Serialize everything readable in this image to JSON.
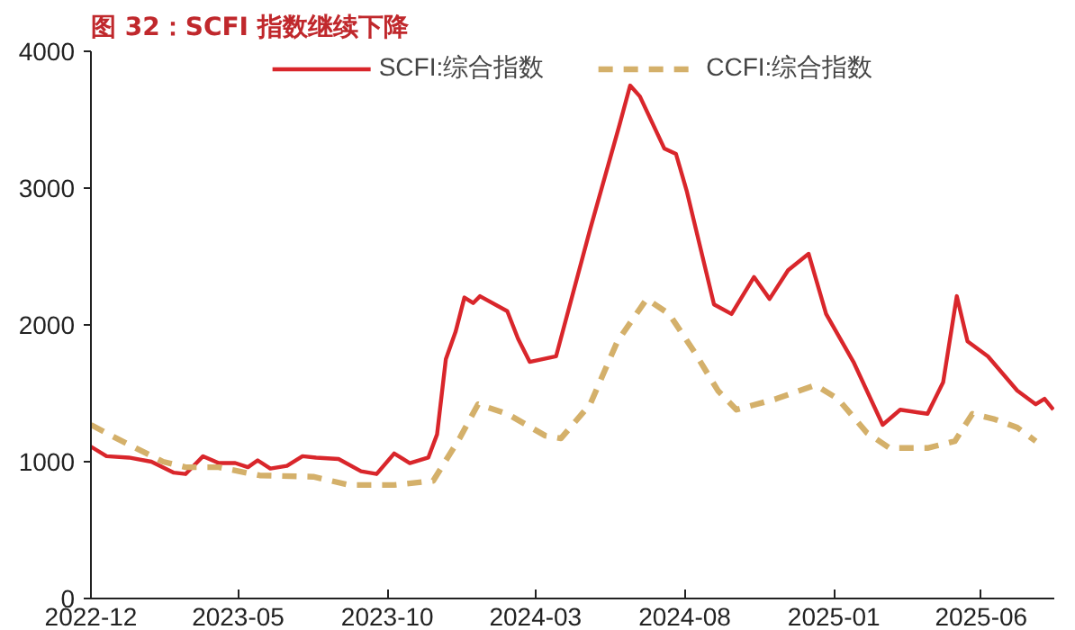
{
  "chart_data": {
    "type": "line",
    "title": "图 32：SCFI 指数继续下降",
    "xlim": [
      "2022-12-01",
      "2025-08-15"
    ],
    "ylim": [
      0,
      4000
    ],
    "yticks": [
      0,
      1000,
      2000,
      3000,
      4000
    ],
    "xticks": [
      {
        "value": "2022-12-01",
        "label": "2022-12"
      },
      {
        "value": "2023-05-01",
        "label": "2023-05"
      },
      {
        "value": "2023-10-01",
        "label": "2023-10"
      },
      {
        "value": "2024-03-01",
        "label": "2024-03"
      },
      {
        "value": "2024-08-01",
        "label": "2024-08"
      },
      {
        "value": "2025-01-01",
        "label": "2025-01"
      },
      {
        "value": "2025-06-01",
        "label": "2025-06"
      }
    ],
    "grid": false,
    "legend": "top",
    "series": [
      {
        "name": "SCFI:综合指数",
        "color": "#d9262b",
        "line_style": "solid",
        "x": [
          "2022-12-01",
          "2022-12-17",
          "2023-01-09",
          "2023-02-01",
          "2023-02-24",
          "2023-03-08",
          "2023-03-26",
          "2023-04-11",
          "2023-04-28",
          "2023-05-11",
          "2023-05-21",
          "2023-06-03",
          "2023-06-20",
          "2023-07-06",
          "2023-07-20",
          "2023-08-12",
          "2023-09-04",
          "2023-09-20",
          "2023-10-08",
          "2023-10-24",
          "2023-11-12",
          "2023-11-21",
          "2023-11-30",
          "2023-12-10",
          "2023-12-19",
          "2023-12-28",
          "2024-01-04",
          "2024-02-01",
          "2024-02-12",
          "2024-02-24",
          "2024-03-22",
          "2024-04-26",
          "2024-05-26",
          "2024-06-06",
          "2024-06-16",
          "2024-07-11",
          "2024-07-23",
          "2024-08-03",
          "2024-08-31",
          "2024-09-18",
          "2024-10-11",
          "2024-10-27",
          "2024-11-15",
          "2024-12-06",
          "2024-12-24",
          "2025-01-21",
          "2025-02-20",
          "2025-03-10",
          "2025-04-07",
          "2025-04-23",
          "2025-05-07",
          "2025-05-18",
          "2025-06-08",
          "2025-07-08",
          "2025-07-27",
          "2025-08-05",
          "2025-08-14"
        ],
        "values": [
          1110,
          1040,
          1030,
          1000,
          920,
          910,
          1040,
          990,
          990,
          960,
          1010,
          950,
          970,
          1040,
          1030,
          1020,
          930,
          910,
          1060,
          990,
          1030,
          1200,
          1750,
          1950,
          2200,
          2160,
          2210,
          2100,
          1900,
          1730,
          1770,
          2700,
          3460,
          3750,
          3670,
          3290,
          3250,
          2980,
          2150,
          2080,
          2350,
          2190,
          2400,
          2520,
          2080,
          1730,
          1270,
          1380,
          1350,
          1580,
          2210,
          1880,
          1770,
          1520,
          1420,
          1460,
          1380
        ]
      },
      {
        "name": "CCFI:综合指数",
        "color": "#d4b06a",
        "line_style": "dashed",
        "x": [
          "2022-12-01",
          "2022-12-22",
          "2023-01-16",
          "2023-02-13",
          "2023-03-08",
          "2023-04-11",
          "2023-05-23",
          "2023-07-17",
          "2023-08-23",
          "2023-10-08",
          "2023-11-17",
          "2023-12-14",
          "2024-01-02",
          "2024-02-01",
          "2024-03-11",
          "2024-03-27",
          "2024-04-26",
          "2024-05-24",
          "2024-06-23",
          "2024-07-16",
          "2024-08-12",
          "2024-09-04",
          "2024-09-23",
          "2024-11-03",
          "2024-12-13",
          "2025-01-05",
          "2025-02-04",
          "2025-02-27",
          "2025-04-07",
          "2025-05-05",
          "2025-05-23",
          "2025-06-15",
          "2025-07-08",
          "2025-07-27"
        ],
        "values": [
          1270,
          1190,
          1100,
          1000,
          960,
          960,
          900,
          890,
          830,
          830,
          860,
          1170,
          1420,
          1350,
          1190,
          1170,
          1420,
          1880,
          2190,
          2080,
          1790,
          1520,
          1380,
          1460,
          1560,
          1460,
          1210,
          1100,
          1100,
          1150,
          1350,
          1310,
          1250,
          1150
        ]
      }
    ]
  }
}
